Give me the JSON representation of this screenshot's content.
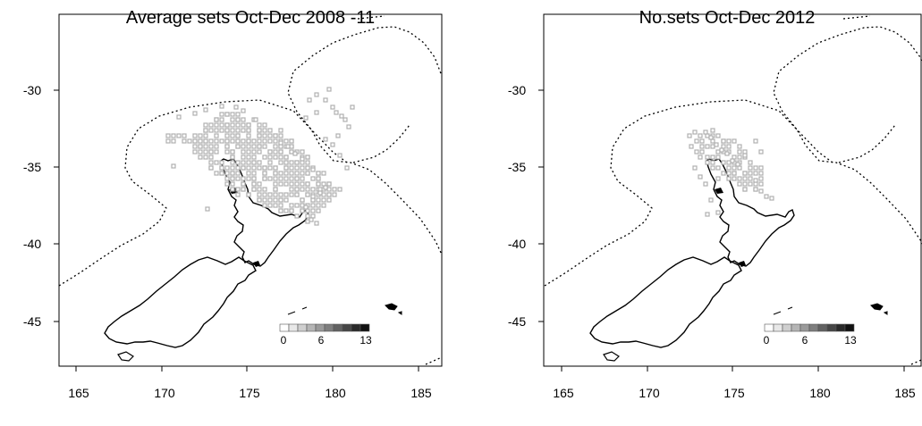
{
  "maps": [
    {
      "title": "Average sets Oct-Dec 2008 -11",
      "x_ticks": [
        "165",
        "170",
        "175",
        "180",
        "185"
      ],
      "y_ticks": [
        "-30",
        "-35",
        "-40",
        "-45"
      ],
      "legend_labels": [
        "0",
        "6",
        "13"
      ]
    },
    {
      "title": "No.sets Oct-Dec 2012",
      "x_ticks": [
        "165",
        "170",
        "175",
        "180",
        "185"
      ],
      "y_ticks": [
        "-30",
        "-35",
        "-40",
        "-45"
      ],
      "legend_labels": [
        "0",
        "6",
        "13"
      ]
    }
  ],
  "legend_colors": [
    "#ffffff",
    "#e8e8e8",
    "#cfcfcf",
    "#b5b5b5",
    "#9a9a9a",
    "#7e7e7e",
    "#626262",
    "#464646",
    "#2a2a2a",
    "#111111"
  ],
  "cell_color": "#b0b0b0"
}
